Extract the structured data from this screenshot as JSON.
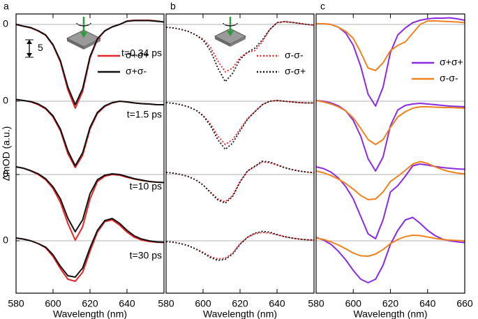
{
  "chart_data": [
    {
      "type": "line",
      "label": "a",
      "ylabel": "ΔmOD (a.u.)",
      "xlabel": "Wavelength (nm)",
      "xlim": [
        580,
        660
      ],
      "xticks": [
        580,
        600,
        620,
        640
      ],
      "ylim": [
        -77,
        3
      ],
      "yticks": [
        {
          "value": 0,
          "label": "0"
        },
        {
          "value": -22,
          "label": "0"
        },
        {
          "value": -43,
          "label": "0"
        },
        {
          "value": -62,
          "label": "0"
        }
      ],
      "hlines": [
        0,
        -22,
        -43,
        -62
      ],
      "scale_bar": 5,
      "annotations": [
        "t=0.34 ps",
        "t=1.5 ps",
        "t=10 ps",
        "t=30 ps"
      ],
      "x": [
        580,
        584,
        588,
        592,
        596,
        600,
        604,
        608,
        612,
        616,
        620,
        624,
        628,
        632,
        636,
        640,
        644,
        648,
        652,
        656,
        660
      ],
      "series": [
        {
          "name": "σ+σ+",
          "color": "#e8262a",
          "dash": "solid",
          "curves": [
            [
              0,
              -0.5,
              -1,
              -1.9,
              -3.1,
              -6,
              -10.8,
              -18.7,
              -24,
              -19.2,
              -9.6,
              -4.3,
              -1.9,
              -0.7,
              0,
              1,
              1.2,
              1.2,
              1.2,
              1,
              0.7
            ],
            [
              -21.5,
              -21.8,
              -22.2,
              -23,
              -24.2,
              -26.5,
              -30.5,
              -37,
              -41,
              -37.5,
              -30,
              -25.5,
              -23.5,
              -22.5,
              -22,
              -22.2,
              -22.5,
              -22.7,
              -22.8,
              -23,
              -23
            ],
            [
              -40.8,
              -41.2,
              -42,
              -43,
              -44.5,
              -47,
              -51,
              -57,
              -61.8,
              -58,
              -50,
              -45,
              -43.5,
              -43,
              -43.2,
              -43.8,
              -44.3,
              -44.7,
              -45,
              -45.2,
              -45.3
            ],
            [
              -61.2,
              -61.5,
              -62,
              -62.8,
              -64,
              -66.5,
              -70,
              -73,
              -73.6,
              -71,
              -65,
              -59.5,
              -56.5,
              -56,
              -57.5,
              -59.5,
              -61,
              -61.8,
              -62.2,
              -62.4,
              -62.5
            ]
          ]
        },
        {
          "name": "σ+σ-",
          "color": "#111111",
          "dash": "solid",
          "curves": [
            [
              0,
              -0.5,
              -0.9,
              -1.8,
              -3,
              -5.8,
              -10.4,
              -17.9,
              -23,
              -18.4,
              -9.2,
              -4.1,
              -1.8,
              -0.7,
              0,
              0.9,
              1.1,
              1.1,
              1.1,
              0.9,
              0.7
            ],
            [
              -21.5,
              -21.8,
              -22.1,
              -22.8,
              -24,
              -26.2,
              -30,
              -36.2,
              -40.5,
              -36.8,
              -29.5,
              -25.2,
              -23.3,
              -22.4,
              -22,
              -22.2,
              -22.5,
              -22.7,
              -22.8,
              -23,
              -23
            ],
            [
              -40.8,
              -41.2,
              -41.9,
              -42.8,
              -44.2,
              -46.5,
              -50,
              -55.5,
              -59.4,
              -56,
              -48.5,
              -44.5,
              -43.2,
              -42.8,
              -43,
              -43.6,
              -44.2,
              -44.6,
              -45,
              -45.2,
              -45.3
            ],
            [
              -61.2,
              -61.5,
              -62,
              -62.8,
              -63.8,
              -66,
              -69.3,
              -72,
              -72.4,
              -69.8,
              -64,
              -59,
              -56.2,
              -55.6,
              -57,
              -59,
              -60.6,
              -61.5,
              -62,
              -62.3,
              -62.4
            ]
          ]
        }
      ]
    },
    {
      "type": "line",
      "label": "b",
      "xlabel": "Wavelength (nm)",
      "xlim": [
        580,
        660
      ],
      "xticks": [
        580,
        600,
        620,
        640
      ],
      "ylim": [
        -77,
        3
      ],
      "hlines": [
        0,
        -22,
        -43,
        -62
      ],
      "x": [
        580,
        584,
        588,
        592,
        596,
        600,
        604,
        608,
        612,
        616,
        620,
        624,
        628,
        632,
        636,
        640,
        644,
        648,
        652,
        656,
        660
      ],
      "series": [
        {
          "name": "σ-σ-",
          "color": "#e8262a",
          "dash": "dotted",
          "curves": [
            [
              -0.8,
              -1,
              -1.4,
              -2,
              -3,
              -4.2,
              -6.5,
              -10.5,
              -13.6,
              -12.5,
              -9.5,
              -8,
              -7.5,
              -5,
              -1.5,
              0.5,
              0.8,
              0.6,
              0.3,
              0,
              -0.2
            ],
            [
              -22.4,
              -22.6,
              -23,
              -23.6,
              -24.5,
              -26,
              -28.5,
              -32,
              -34.4,
              -33,
              -30,
              -27,
              -25,
              -23,
              -22,
              -21.8,
              -22,
              -22.2,
              -22.4,
              -22.5,
              -22.5
            ],
            [
              -42.4,
              -42.6,
              -43,
              -43.6,
              -44.5,
              -46,
              -48,
              -50,
              -50.8,
              -49,
              -45,
              -42,
              -40.8,
              -39.4,
              -39.6,
              -40.3,
              -41,
              -41.6,
              -42,
              -42.3,
              -42.5
            ],
            [
              -62.2,
              -62.4,
              -62.8,
              -63.4,
              -64.3,
              -65.3,
              -66.5,
              -67.2,
              -67,
              -65.5,
              -62.8,
              -61,
              -60,
              -59.6,
              -59.8,
              -60.3,
              -60.8,
              -61.2,
              -61.5,
              -61.7,
              -61.8
            ]
          ]
        },
        {
          "name": "σ-σ+",
          "color": "#111111",
          "dash": "dotted",
          "curves": [
            [
              -0.8,
              -1,
              -1.4,
              -2,
              -3,
              -4.5,
              -7.5,
              -12.5,
              -16.4,
              -14,
              -10,
              -8,
              -6.8,
              -4.5,
              -1.5,
              0.5,
              0.8,
              0.6,
              0.3,
              0,
              -0.2
            ],
            [
              -22.4,
              -22.6,
              -23,
              -23.6,
              -24.5,
              -26.2,
              -29,
              -33,
              -35.8,
              -34,
              -30.5,
              -27.2,
              -25,
              -23,
              -22,
              -21.8,
              -22,
              -22.2,
              -22.4,
              -22.5,
              -22.5
            ],
            [
              -42.4,
              -42.6,
              -43,
              -43.6,
              -44.5,
              -46,
              -48.2,
              -50.3,
              -51.2,
              -49.3,
              -45.2,
              -42,
              -40.6,
              -39.2,
              -39.4,
              -40.2,
              -41,
              -41.6,
              -42,
              -42.3,
              -42.5
            ],
            [
              -62.2,
              -62.4,
              -62.8,
              -63.4,
              -64.3,
              -65.5,
              -66.8,
              -67.6,
              -67.3,
              -65.8,
              -63,
              -61,
              -59.8,
              -59.3,
              -59.5,
              -60.2,
              -60.8,
              -61.2,
              -61.5,
              -61.7,
              -61.8
            ]
          ]
        }
      ]
    },
    {
      "type": "line",
      "label": "c",
      "xlabel": "Wavelength (nm)",
      "xlim": [
        580,
        660
      ],
      "xticks": [
        580,
        600,
        620,
        640,
        660
      ],
      "ylim": [
        -77,
        3
      ],
      "hlines": [
        0,
        -22,
        -43,
        -62
      ],
      "x": [
        580,
        584,
        588,
        592,
        596,
        600,
        604,
        608,
        612,
        616,
        620,
        624,
        628,
        632,
        636,
        640,
        644,
        648,
        652,
        656,
        660
      ],
      "series": [
        {
          "name": "σ+σ+",
          "color": "#8a2be2",
          "dash": "solid",
          "curves": [
            [
              0.2,
              0.2,
              0,
              -0.8,
              -2.5,
              -6,
              -12,
              -20,
              -23.4,
              -18,
              -8,
              -3,
              -1,
              0.5,
              1.2,
              1.6,
              1.8,
              1.8,
              1.9,
              1.6,
              1.2
            ],
            [
              -21.8,
              -22,
              -22.5,
              -23.3,
              -24.8,
              -27.5,
              -32,
              -38.5,
              -42,
              -38,
              -29,
              -24.5,
              -23.2,
              -22.8,
              -22.6,
              -22.8,
              -23,
              -23.2,
              -23.4,
              -23.5,
              -23.6
            ],
            [
              -40.8,
              -41.3,
              -42.3,
              -44,
              -46.5,
              -50,
              -55,
              -60,
              -61.4,
              -56,
              -48,
              -46.2,
              -43.5,
              -40.5,
              -40,
              -40.3,
              -40.7,
              -41,
              -41.2,
              -41.4,
              -41.5
            ],
            [
              -61,
              -61.8,
              -63,
              -65,
              -67.5,
              -70.5,
              -73,
              -74,
              -73,
              -69,
              -63,
              -59,
              -56,
              -55.3,
              -57,
              -59,
              -60.5,
              -61.5,
              -62,
              -62.3,
              -62.5
            ]
          ]
        },
        {
          "name": "σ-σ-",
          "color": "#f0821e",
          "dash": "solid",
          "curves": [
            [
              0.2,
              0.2,
              0,
              -0.8,
              -2,
              -4,
              -8,
              -12.5,
              -13.2,
              -11,
              -7.5,
              -6,
              -5,
              -2.5,
              0,
              1,
              1,
              0.9,
              0.8,
              0.7,
              0.5
            ],
            [
              -21.8,
              -22.2,
              -22.8,
              -23.6,
              -24.8,
              -26.8,
              -29.8,
              -33,
              -34.4,
              -33,
              -29.5,
              -26.5,
              -25,
              -24,
              -23.6,
              -23.6,
              -23.7,
              -23.8,
              -23.8,
              -23.9,
              -24
            ],
            [
              -42,
              -42.5,
              -43.3,
              -44.3,
              -45.6,
              -47.2,
              -49,
              -50.2,
              -50,
              -48,
              -45,
              -43.5,
              -41.8,
              -40,
              -39.3,
              -39.8,
              -40.8,
              -41.6,
              -42.2,
              -42.6,
              -42.8
            ],
            [
              -61.2,
              -61.6,
              -62.3,
              -63.2,
              -64.3,
              -65.5,
              -66.3,
              -66.4,
              -65.8,
              -64.5,
              -62.8,
              -61.6,
              -60.8,
              -60.4,
              -60.5,
              -60.9,
              -61.3,
              -61.6,
              -61.8,
              -61.9,
              -62
            ]
          ]
        }
      ]
    }
  ]
}
